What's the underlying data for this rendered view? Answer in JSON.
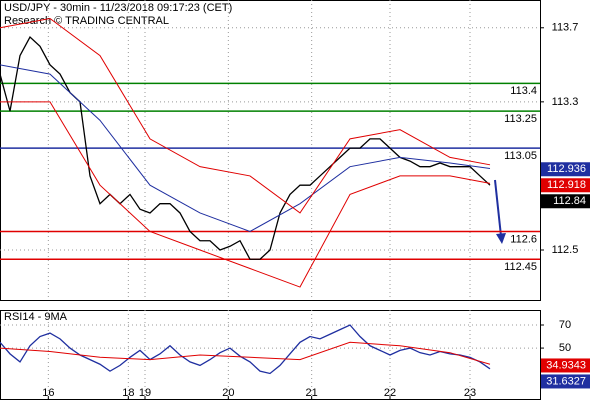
{
  "chart_data": [
    {
      "type": "line",
      "title": "USD/JPY - 30min - 11/23/2018 09:17:23 (CET)",
      "subtitle": "Research © TRADING CENTRAL",
      "xlim": [
        0,
        324
      ],
      "ylim": [
        112.23,
        113.85
      ],
      "yticks": [
        112.5,
        113.3,
        113.7
      ],
      "grid": true,
      "series": [
        {
          "color": "#000000",
          "x": [
            0,
            6,
            12,
            18,
            24,
            30,
            36,
            42,
            48,
            54,
            60,
            66,
            72,
            78,
            84,
            90,
            96,
            102,
            108,
            114,
            120,
            126,
            132,
            138,
            144,
            150,
            156,
            162,
            168,
            174,
            180,
            186,
            192,
            198,
            204,
            210,
            216,
            222,
            228,
            234,
            240,
            246,
            252,
            258,
            264,
            270,
            276,
            282,
            288,
            294
          ],
          "values": [
            113.45,
            113.25,
            113.55,
            113.65,
            113.6,
            113.5,
            113.45,
            113.35,
            113.3,
            112.9,
            112.75,
            112.8,
            112.75,
            112.8,
            112.72,
            112.7,
            112.75,
            112.75,
            112.7,
            112.6,
            112.55,
            112.55,
            112.5,
            112.52,
            112.55,
            112.45,
            112.45,
            112.5,
            112.7,
            112.8,
            112.85,
            112.85,
            112.9,
            112.95,
            113.0,
            113.05,
            113.05,
            113.1,
            113.1,
            113.05,
            113.0,
            112.98,
            112.95,
            112.95,
            112.97,
            112.95,
            112.95,
            112.95,
            112.9,
            112.85
          ]
        },
        {
          "color": "#1f2fa0",
          "x": [
            0,
            30,
            60,
            90,
            120,
            150,
            180,
            210,
            240,
            270,
            294
          ],
          "values": [
            113.5,
            113.45,
            113.2,
            112.85,
            112.7,
            112.6,
            112.75,
            112.95,
            113.0,
            112.97,
            112.94
          ]
        },
        {
          "color": "#e00000",
          "x": [
            0,
            30,
            60,
            90,
            120,
            150,
            180,
            210,
            240,
            270,
            294
          ],
          "values": [
            113.7,
            113.75,
            113.55,
            113.1,
            112.95,
            112.9,
            112.7,
            113.1,
            113.15,
            113.0,
            112.96
          ]
        },
        {
          "color": "#e00000",
          "x": [
            0,
            30,
            60,
            90,
            120,
            150,
            180,
            210,
            240,
            270,
            294
          ],
          "values": [
            113.3,
            113.3,
            112.85,
            112.6,
            112.5,
            112.4,
            112.3,
            112.8,
            112.9,
            112.9,
            112.86
          ]
        }
      ],
      "levels": [
        {
          "value": 113.4,
          "color": "#008000"
        },
        {
          "value": 113.25,
          "color": "#008000"
        },
        {
          "value": 113.05,
          "color": "#1f2fa0"
        },
        {
          "value": 112.6,
          "color": "#e00000"
        },
        {
          "value": 112.45,
          "color": "#e00000"
        }
      ],
      "price_tags": [
        {
          "value": 112.936,
          "color": "#1f2fa0"
        },
        {
          "value": 112.918,
          "color": "#e00000"
        },
        {
          "value": 112.84,
          "color": "#000000"
        }
      ]
    },
    {
      "type": "line",
      "title": "RSI14 - 9MA",
      "xlim": [
        0,
        324
      ],
      "ylim": [
        5,
        83
      ],
      "yticks": [
        50,
        70
      ],
      "grid": true,
      "xticks": [
        {
          "value": 29,
          "label": "16"
        },
        {
          "value": 77,
          "label": "18"
        },
        {
          "value": 87,
          "label": "19"
        },
        {
          "value": 137,
          "label": "20"
        },
        {
          "value": 187,
          "label": "21"
        },
        {
          "value": 234,
          "label": "22"
        },
        {
          "value": 282,
          "label": "23"
        }
      ],
      "series": [
        {
          "color": "#1f2fa0",
          "x": [
            0,
            6,
            12,
            18,
            24,
            30,
            36,
            42,
            48,
            54,
            60,
            66,
            72,
            78,
            84,
            90,
            96,
            102,
            108,
            114,
            120,
            126,
            132,
            138,
            144,
            150,
            156,
            162,
            168,
            174,
            180,
            186,
            192,
            198,
            204,
            210,
            216,
            222,
            228,
            234,
            240,
            246,
            252,
            258,
            264,
            270,
            276,
            282,
            288,
            294
          ],
          "values": [
            55,
            45,
            38,
            52,
            60,
            63,
            58,
            50,
            44,
            40,
            36,
            30,
            35,
            42,
            48,
            40,
            45,
            52,
            44,
            38,
            35,
            40,
            46,
            50,
            43,
            38,
            30,
            28,
            35,
            45,
            55,
            60,
            58,
            62,
            66,
            70,
            60,
            52,
            48,
            44,
            48,
            50,
            46,
            44,
            47,
            45,
            44,
            42,
            38,
            32
          ]
        },
        {
          "color": "#e00000",
          "x": [
            0,
            30,
            60,
            90,
            120,
            150,
            180,
            210,
            240,
            270,
            294
          ],
          "values": [
            50,
            47,
            42,
            40,
            44,
            42,
            40,
            55,
            52,
            46,
            36
          ]
        }
      ],
      "price_tags": [
        {
          "value": 34.9343,
          "color": "#e00000"
        },
        {
          "value": 31.6327,
          "color": "#1f2fa0"
        }
      ]
    }
  ]
}
